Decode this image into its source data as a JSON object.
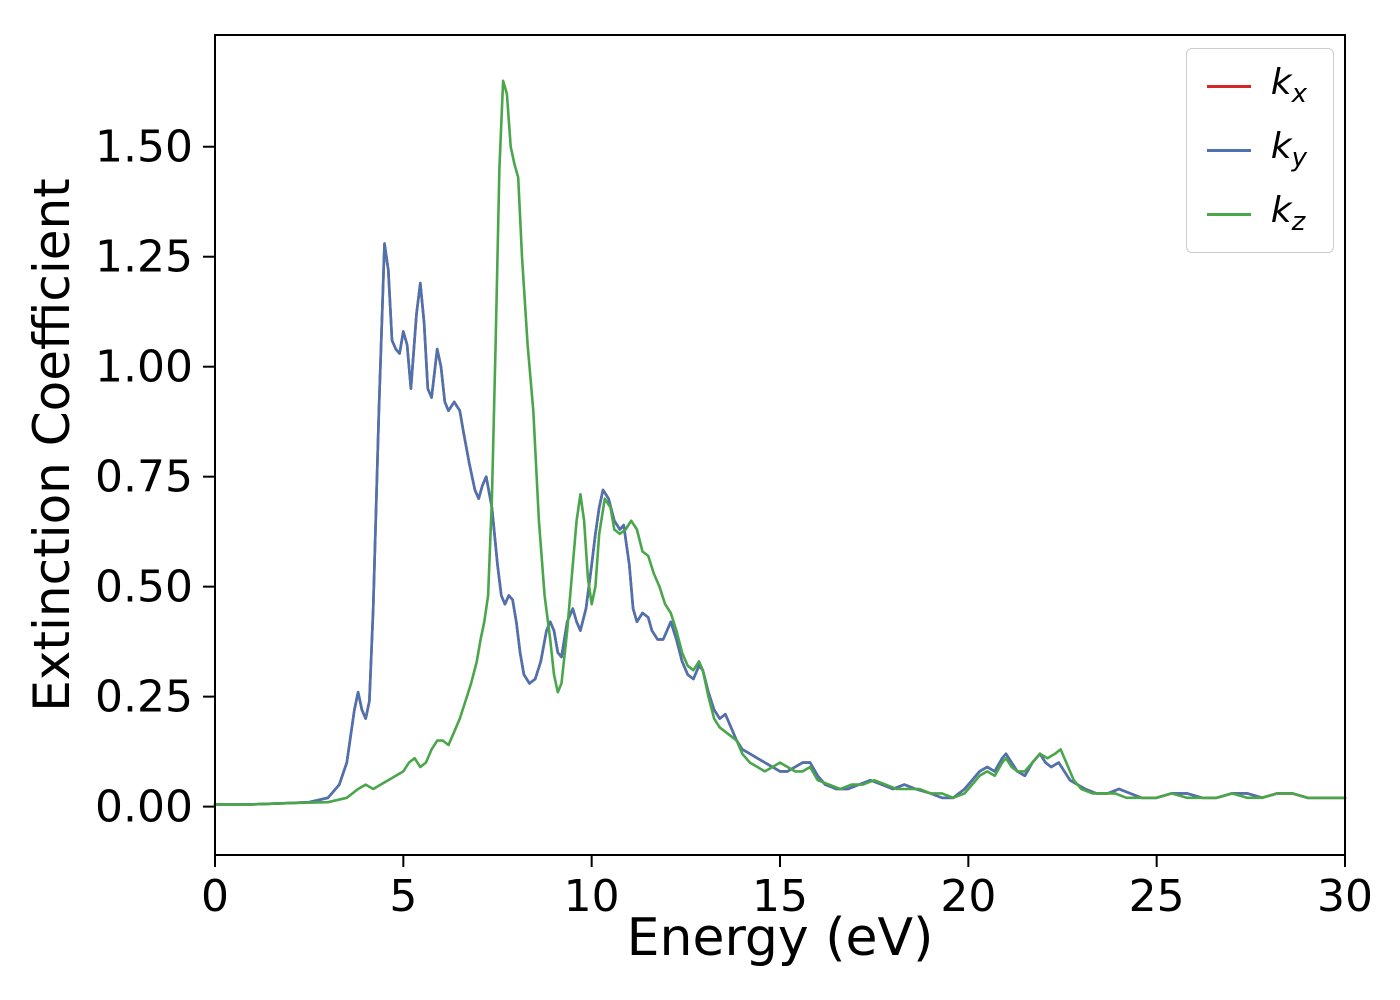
{
  "chart_data": {
    "type": "line",
    "title": "",
    "xlabel": "Energy (eV)",
    "ylabel": "Extinction Coefficient",
    "xlim": [
      0,
      30
    ],
    "ylim": [
      -0.11,
      1.754
    ],
    "grid": false,
    "legend_position": "upper right",
    "axis_color": "#000000",
    "xticks": {
      "values": [
        0,
        5,
        10,
        15,
        20,
        25,
        30
      ],
      "labels": [
        "0",
        "5",
        "10",
        "15",
        "20",
        "25",
        "30"
      ]
    },
    "yticks": {
      "values": [
        0,
        0.25,
        0.5,
        0.75,
        1.0,
        1.25,
        1.5
      ],
      "labels": [
        "0.00",
        "0.25",
        "0.50",
        "0.75",
        "1.00",
        "1.25",
        "1.50"
      ]
    },
    "series": [
      {
        "name": "k_x",
        "base": "k",
        "sub": "x",
        "color": "#d62728",
        "points": "same_as:k_y"
      },
      {
        "name": "k_y",
        "base": "k",
        "sub": "y",
        "color": "#4c72b0",
        "points": [
          [
            0,
            0.005
          ],
          [
            1,
            0.005
          ],
          [
            2,
            0.008
          ],
          [
            2.5,
            0.01
          ],
          [
            3.0,
            0.02
          ],
          [
            3.3,
            0.05
          ],
          [
            3.5,
            0.1
          ],
          [
            3.7,
            0.22
          ],
          [
            3.8,
            0.26
          ],
          [
            3.9,
            0.22
          ],
          [
            4.0,
            0.2
          ],
          [
            4.1,
            0.24
          ],
          [
            4.2,
            0.45
          ],
          [
            4.35,
            0.9
          ],
          [
            4.5,
            1.28
          ],
          [
            4.6,
            1.22
          ],
          [
            4.7,
            1.06
          ],
          [
            4.8,
            1.04
          ],
          [
            4.9,
            1.03
          ],
          [
            5.0,
            1.08
          ],
          [
            5.1,
            1.05
          ],
          [
            5.2,
            0.95
          ],
          [
            5.35,
            1.12
          ],
          [
            5.45,
            1.19
          ],
          [
            5.55,
            1.1
          ],
          [
            5.65,
            0.95
          ],
          [
            5.75,
            0.93
          ],
          [
            5.9,
            1.04
          ],
          [
            6.0,
            1.0
          ],
          [
            6.1,
            0.92
          ],
          [
            6.2,
            0.9
          ],
          [
            6.35,
            0.92
          ],
          [
            6.5,
            0.9
          ],
          [
            6.6,
            0.85
          ],
          [
            6.75,
            0.78
          ],
          [
            6.9,
            0.72
          ],
          [
            7.0,
            0.7
          ],
          [
            7.1,
            0.73
          ],
          [
            7.2,
            0.75
          ],
          [
            7.35,
            0.68
          ],
          [
            7.5,
            0.55
          ],
          [
            7.6,
            0.48
          ],
          [
            7.7,
            0.46
          ],
          [
            7.8,
            0.48
          ],
          [
            7.9,
            0.47
          ],
          [
            8.0,
            0.42
          ],
          [
            8.1,
            0.35
          ],
          [
            8.2,
            0.3
          ],
          [
            8.35,
            0.28
          ],
          [
            8.5,
            0.29
          ],
          [
            8.65,
            0.33
          ],
          [
            8.8,
            0.4
          ],
          [
            8.9,
            0.42
          ],
          [
            9.0,
            0.4
          ],
          [
            9.1,
            0.35
          ],
          [
            9.2,
            0.34
          ],
          [
            9.35,
            0.42
          ],
          [
            9.5,
            0.45
          ],
          [
            9.6,
            0.42
          ],
          [
            9.7,
            0.4
          ],
          [
            9.85,
            0.45
          ],
          [
            10.0,
            0.55
          ],
          [
            10.1,
            0.62
          ],
          [
            10.2,
            0.68
          ],
          [
            10.3,
            0.72
          ],
          [
            10.45,
            0.7
          ],
          [
            10.6,
            0.65
          ],
          [
            10.75,
            0.63
          ],
          [
            10.85,
            0.64
          ],
          [
            11.0,
            0.55
          ],
          [
            11.1,
            0.45
          ],
          [
            11.2,
            0.42
          ],
          [
            11.35,
            0.44
          ],
          [
            11.5,
            0.43
          ],
          [
            11.6,
            0.4
          ],
          [
            11.75,
            0.38
          ],
          [
            11.9,
            0.38
          ],
          [
            12.0,
            0.4
          ],
          [
            12.1,
            0.42
          ],
          [
            12.25,
            0.38
          ],
          [
            12.4,
            0.33
          ],
          [
            12.55,
            0.3
          ],
          [
            12.7,
            0.29
          ],
          [
            12.85,
            0.32
          ],
          [
            12.95,
            0.31
          ],
          [
            13.1,
            0.26
          ],
          [
            13.25,
            0.22
          ],
          [
            13.4,
            0.2
          ],
          [
            13.55,
            0.21
          ],
          [
            13.7,
            0.18
          ],
          [
            13.85,
            0.15
          ],
          [
            14.0,
            0.13
          ],
          [
            14.2,
            0.12
          ],
          [
            14.4,
            0.11
          ],
          [
            14.6,
            0.1
          ],
          [
            14.8,
            0.09
          ],
          [
            15.0,
            0.08
          ],
          [
            15.2,
            0.08
          ],
          [
            15.4,
            0.09
          ],
          [
            15.6,
            0.1
          ],
          [
            15.8,
            0.1
          ],
          [
            16.0,
            0.07
          ],
          [
            16.2,
            0.05
          ],
          [
            16.5,
            0.04
          ],
          [
            16.8,
            0.04
          ],
          [
            17.1,
            0.05
          ],
          [
            17.4,
            0.06
          ],
          [
            17.7,
            0.05
          ],
          [
            18.0,
            0.04
          ],
          [
            18.3,
            0.05
          ],
          [
            18.6,
            0.04
          ],
          [
            19.0,
            0.03
          ],
          [
            19.3,
            0.02
          ],
          [
            19.6,
            0.02
          ],
          [
            19.9,
            0.04
          ],
          [
            20.1,
            0.06
          ],
          [
            20.3,
            0.08
          ],
          [
            20.5,
            0.09
          ],
          [
            20.7,
            0.08
          ],
          [
            20.9,
            0.11
          ],
          [
            21.0,
            0.12
          ],
          [
            21.15,
            0.1
          ],
          [
            21.3,
            0.08
          ],
          [
            21.5,
            0.07
          ],
          [
            21.7,
            0.1
          ],
          [
            21.9,
            0.12
          ],
          [
            22.05,
            0.1
          ],
          [
            22.2,
            0.09
          ],
          [
            22.4,
            0.1
          ],
          [
            22.55,
            0.08
          ],
          [
            22.7,
            0.06
          ],
          [
            22.9,
            0.05
          ],
          [
            23.1,
            0.04
          ],
          [
            23.4,
            0.03
          ],
          [
            23.7,
            0.03
          ],
          [
            24.0,
            0.04
          ],
          [
            24.3,
            0.03
          ],
          [
            24.6,
            0.02
          ],
          [
            25.0,
            0.02
          ],
          [
            25.4,
            0.03
          ],
          [
            25.8,
            0.03
          ],
          [
            26.2,
            0.02
          ],
          [
            26.6,
            0.02
          ],
          [
            27.0,
            0.03
          ],
          [
            27.4,
            0.03
          ],
          [
            27.8,
            0.02
          ],
          [
            28.2,
            0.03
          ],
          [
            28.6,
            0.03
          ],
          [
            29.0,
            0.02
          ],
          [
            29.4,
            0.02
          ],
          [
            30.0,
            0.02
          ]
        ]
      },
      {
        "name": "k_z",
        "base": "k",
        "sub": "z",
        "color": "#4aa64a",
        "points": [
          [
            0,
            0.005
          ],
          [
            1,
            0.005
          ],
          [
            2,
            0.008
          ],
          [
            3,
            0.01
          ],
          [
            3.5,
            0.02
          ],
          [
            3.8,
            0.04
          ],
          [
            4.0,
            0.05
          ],
          [
            4.2,
            0.04
          ],
          [
            4.4,
            0.05
          ],
          [
            4.6,
            0.06
          ],
          [
            4.8,
            0.07
          ],
          [
            5.0,
            0.08
          ],
          [
            5.15,
            0.1
          ],
          [
            5.3,
            0.11
          ],
          [
            5.45,
            0.09
          ],
          [
            5.6,
            0.1
          ],
          [
            5.75,
            0.13
          ],
          [
            5.9,
            0.15
          ],
          [
            6.05,
            0.15
          ],
          [
            6.2,
            0.14
          ],
          [
            6.35,
            0.17
          ],
          [
            6.5,
            0.2
          ],
          [
            6.65,
            0.24
          ],
          [
            6.8,
            0.28
          ],
          [
            6.95,
            0.33
          ],
          [
            7.05,
            0.38
          ],
          [
            7.15,
            0.42
          ],
          [
            7.25,
            0.48
          ],
          [
            7.35,
            0.7
          ],
          [
            7.45,
            1.05
          ],
          [
            7.55,
            1.45
          ],
          [
            7.65,
            1.65
          ],
          [
            7.75,
            1.62
          ],
          [
            7.85,
            1.5
          ],
          [
            7.95,
            1.46
          ],
          [
            8.05,
            1.43
          ],
          [
            8.15,
            1.25
          ],
          [
            8.3,
            1.05
          ],
          [
            8.45,
            0.9
          ],
          [
            8.6,
            0.65
          ],
          [
            8.75,
            0.48
          ],
          [
            8.9,
            0.38
          ],
          [
            9.0,
            0.3
          ],
          [
            9.1,
            0.26
          ],
          [
            9.2,
            0.28
          ],
          [
            9.35,
            0.4
          ],
          [
            9.5,
            0.55
          ],
          [
            9.6,
            0.65
          ],
          [
            9.7,
            0.71
          ],
          [
            9.8,
            0.65
          ],
          [
            9.9,
            0.52
          ],
          [
            10.0,
            0.46
          ],
          [
            10.1,
            0.5
          ],
          [
            10.2,
            0.62
          ],
          [
            10.35,
            0.7
          ],
          [
            10.5,
            0.68
          ],
          [
            10.6,
            0.63
          ],
          [
            10.75,
            0.62
          ],
          [
            10.9,
            0.63
          ],
          [
            11.05,
            0.65
          ],
          [
            11.2,
            0.63
          ],
          [
            11.35,
            0.58
          ],
          [
            11.5,
            0.57
          ],
          [
            11.65,
            0.53
          ],
          [
            11.8,
            0.5
          ],
          [
            11.95,
            0.46
          ],
          [
            12.1,
            0.44
          ],
          [
            12.25,
            0.4
          ],
          [
            12.4,
            0.35
          ],
          [
            12.55,
            0.32
          ],
          [
            12.7,
            0.31
          ],
          [
            12.85,
            0.33
          ],
          [
            12.95,
            0.31
          ],
          [
            13.1,
            0.25
          ],
          [
            13.25,
            0.2
          ],
          [
            13.4,
            0.18
          ],
          [
            13.55,
            0.17
          ],
          [
            13.7,
            0.16
          ],
          [
            13.85,
            0.15
          ],
          [
            14.0,
            0.12
          ],
          [
            14.2,
            0.1
          ],
          [
            14.4,
            0.09
          ],
          [
            14.6,
            0.08
          ],
          [
            14.8,
            0.09
          ],
          [
            15.0,
            0.1
          ],
          [
            15.2,
            0.09
          ],
          [
            15.4,
            0.08
          ],
          [
            15.6,
            0.08
          ],
          [
            15.8,
            0.09
          ],
          [
            16.0,
            0.06
          ],
          [
            16.3,
            0.05
          ],
          [
            16.6,
            0.04
          ],
          [
            16.9,
            0.05
          ],
          [
            17.2,
            0.05
          ],
          [
            17.5,
            0.06
          ],
          [
            17.8,
            0.05
          ],
          [
            18.1,
            0.04
          ],
          [
            18.4,
            0.04
          ],
          [
            18.7,
            0.04
          ],
          [
            19.0,
            0.03
          ],
          [
            19.3,
            0.03
          ],
          [
            19.6,
            0.02
          ],
          [
            19.9,
            0.03
          ],
          [
            20.1,
            0.05
          ],
          [
            20.3,
            0.07
          ],
          [
            20.5,
            0.08
          ],
          [
            20.7,
            0.07
          ],
          [
            20.9,
            0.1
          ],
          [
            21.0,
            0.11
          ],
          [
            21.15,
            0.09
          ],
          [
            21.3,
            0.08
          ],
          [
            21.5,
            0.08
          ],
          [
            21.7,
            0.1
          ],
          [
            21.9,
            0.12
          ],
          [
            22.1,
            0.11
          ],
          [
            22.3,
            0.12
          ],
          [
            22.45,
            0.13
          ],
          [
            22.6,
            0.1
          ],
          [
            22.8,
            0.06
          ],
          [
            23.0,
            0.04
          ],
          [
            23.3,
            0.03
          ],
          [
            23.6,
            0.03
          ],
          [
            23.9,
            0.03
          ],
          [
            24.2,
            0.02
          ],
          [
            24.6,
            0.02
          ],
          [
            25.0,
            0.02
          ],
          [
            25.4,
            0.03
          ],
          [
            25.8,
            0.02
          ],
          [
            26.2,
            0.02
          ],
          [
            26.6,
            0.02
          ],
          [
            27.0,
            0.03
          ],
          [
            27.4,
            0.02
          ],
          [
            27.8,
            0.02
          ],
          [
            28.2,
            0.03
          ],
          [
            28.6,
            0.03
          ],
          [
            29.0,
            0.02
          ],
          [
            29.4,
            0.02
          ],
          [
            30.0,
            0.02
          ]
        ]
      }
    ]
  }
}
